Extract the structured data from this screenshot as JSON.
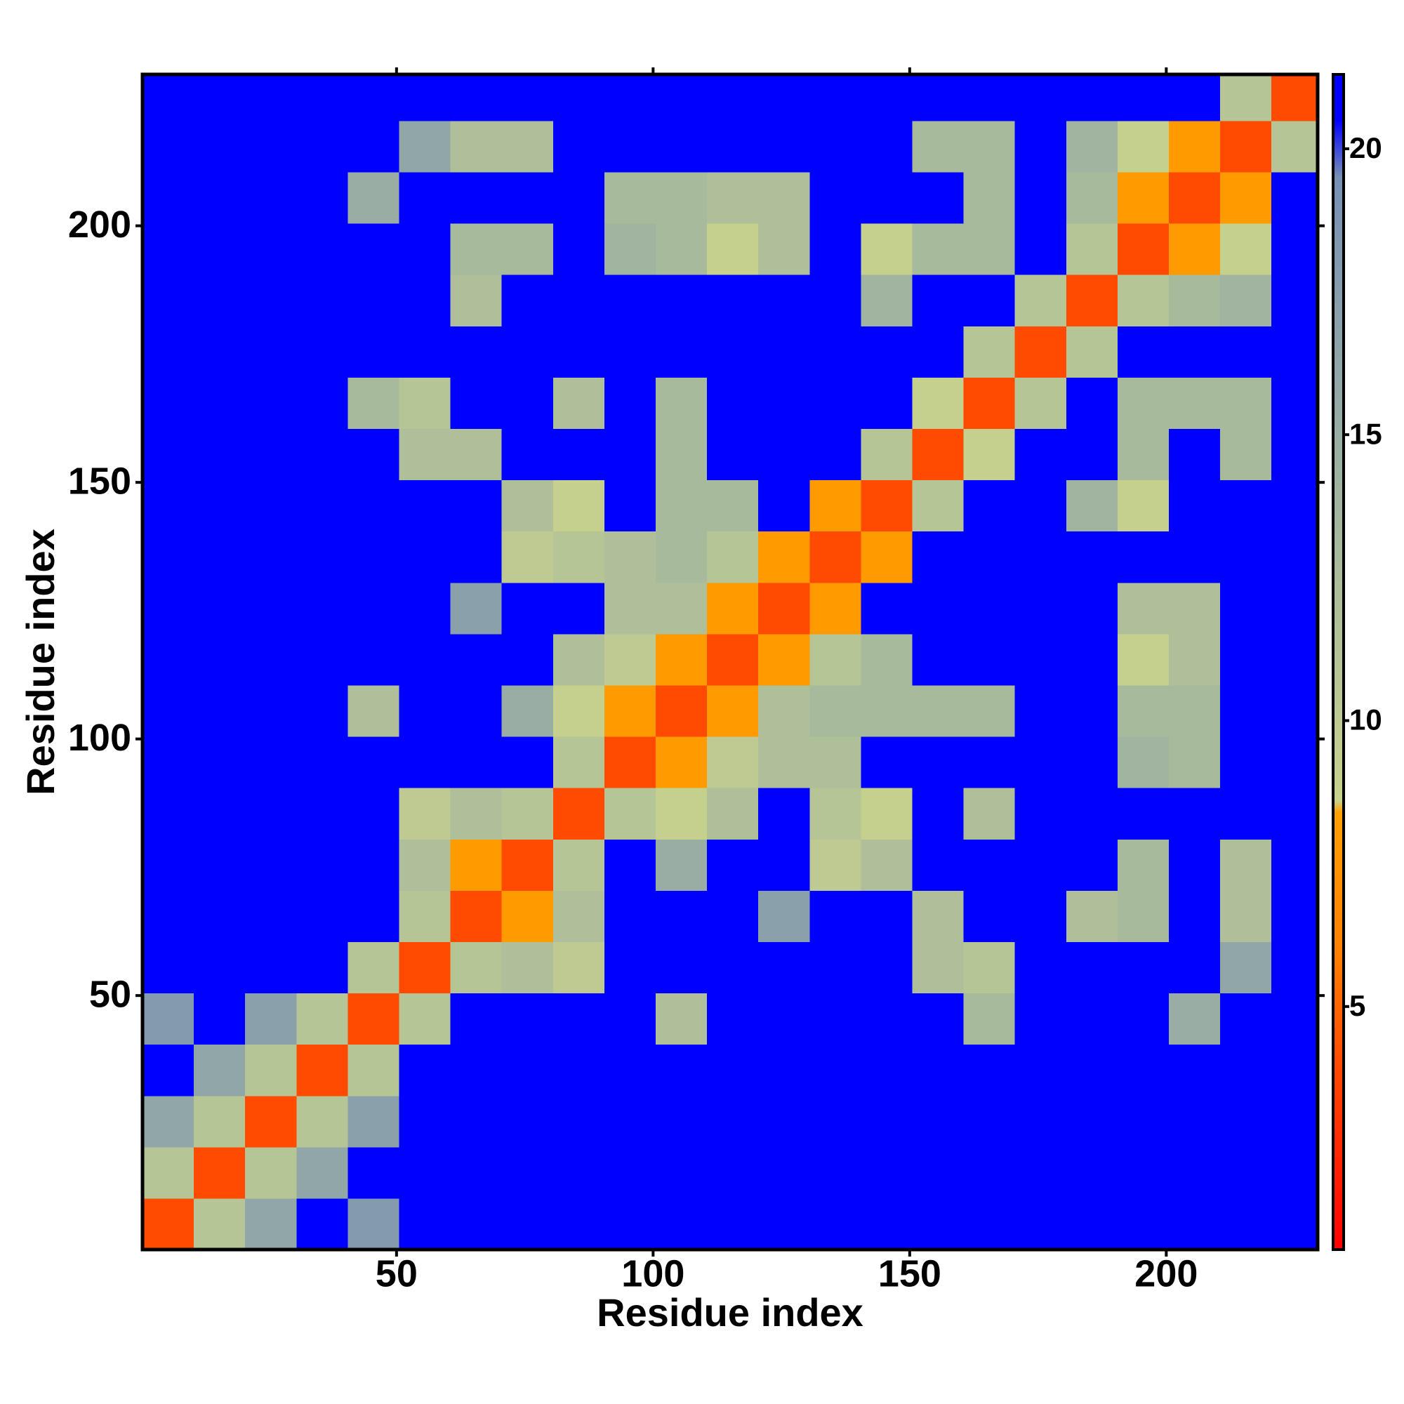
{
  "chart_data": {
    "type": "heatmap",
    "xlabel": "Residue index",
    "ylabel": "Residue index",
    "bins": [
      0.5,
      10.5,
      20.5,
      30.5,
      40.5,
      50.5,
      60.5,
      70.5,
      80.5,
      90.5,
      100.5,
      110.5,
      120.5,
      130.5,
      140.5,
      150.5,
      160.5,
      170.5,
      180.5,
      190.5,
      200.5,
      210.5,
      220.5,
      229.5
    ],
    "xlim": [
      0.5,
      229.5
    ],
    "ylim": [
      0.5,
      229.5
    ],
    "xticks": [
      50,
      100,
      150,
      200
    ],
    "yticks": [
      50,
      100,
      150,
      200
    ],
    "zlim": [
      0.75,
      21.3
    ],
    "zticks": [
      5,
      10,
      15,
      20
    ],
    "colorscale": [
      [
        0.75,
        "#ff0000"
      ],
      [
        4,
        "#ff4a00"
      ],
      [
        6,
        "#ff8000"
      ],
      [
        8.4,
        "#ffa000"
      ],
      [
        8.6,
        "#c8d28c"
      ],
      [
        14,
        "#a0b4a0"
      ],
      [
        19.5,
        "#7890b4"
      ],
      [
        20.5,
        "#0000ff"
      ]
    ],
    "z": [
      [
        4,
        11,
        16,
        21,
        18,
        21,
        21,
        21,
        21,
        21,
        21,
        21,
        21,
        21,
        21,
        21,
        21,
        21,
        21,
        21,
        21,
        21,
        21
      ],
      [
        11,
        4,
        11,
        16,
        21,
        21,
        21,
        21,
        21,
        21,
        21,
        21,
        21,
        21,
        21,
        21,
        21,
        21,
        21,
        21,
        21,
        21,
        21
      ],
      [
        16,
        11,
        4,
        11,
        17,
        21,
        21,
        21,
        21,
        21,
        21,
        21,
        21,
        21,
        21,
        21,
        21,
        21,
        21,
        21,
        21,
        21,
        21
      ],
      [
        21,
        16,
        11,
        4,
        11,
        21,
        21,
        21,
        21,
        21,
        21,
        21,
        21,
        21,
        21,
        21,
        21,
        21,
        21,
        21,
        21,
        21,
        21
      ],
      [
        18,
        21,
        17,
        11,
        4,
        11,
        21,
        21,
        21,
        21,
        12,
        21,
        21,
        21,
        21,
        21,
        13,
        21,
        21,
        21,
        15,
        21,
        21
      ],
      [
        21,
        21,
        21,
        21,
        11,
        4,
        11,
        12,
        10,
        21,
        21,
        21,
        21,
        21,
        21,
        12,
        11,
        21,
        21,
        21,
        21,
        16,
        21
      ],
      [
        21,
        21,
        21,
        21,
        21,
        11,
        4,
        8,
        12,
        21,
        21,
        21,
        17,
        21,
        21,
        12,
        21,
        21,
        12,
        13,
        21,
        12,
        21
      ],
      [
        21,
        21,
        21,
        21,
        21,
        12,
        8,
        4,
        11,
        21,
        15,
        21,
        21,
        10,
        12,
        21,
        21,
        21,
        21,
        13,
        21,
        12,
        21
      ],
      [
        21,
        21,
        21,
        21,
        21,
        10,
        12,
        11,
        4,
        11,
        9,
        12,
        21,
        11,
        9,
        21,
        12,
        21,
        21,
        21,
        21,
        21,
        21
      ],
      [
        21,
        21,
        21,
        21,
        21,
        21,
        21,
        21,
        11,
        4,
        8,
        10,
        12,
        12,
        21,
        21,
        21,
        21,
        21,
        14,
        13,
        21,
        21
      ],
      [
        21,
        21,
        21,
        21,
        12,
        21,
        21,
        15,
        9,
        8,
        4,
        8,
        12,
        13,
        13,
        13,
        13,
        21,
        21,
        13,
        13,
        21,
        21
      ],
      [
        21,
        21,
        21,
        21,
        21,
        21,
        21,
        21,
        12,
        10,
        8,
        4,
        8,
        11,
        13,
        21,
        21,
        21,
        21,
        9,
        12,
        21,
        21
      ],
      [
        21,
        21,
        21,
        21,
        21,
        21,
        17,
        21,
        21,
        12,
        12,
        8,
        4,
        8,
        21,
        21,
        21,
        21,
        21,
        12,
        12,
        21,
        21
      ],
      [
        21,
        21,
        21,
        21,
        21,
        21,
        21,
        10,
        11,
        12,
        13,
        11,
        8,
        4,
        8,
        21,
        21,
        21,
        21,
        21,
        21,
        21,
        21
      ],
      [
        21,
        21,
        21,
        21,
        21,
        21,
        21,
        12,
        9,
        21,
        13,
        13,
        21,
        8,
        4,
        11,
        21,
        21,
        14,
        9,
        21,
        21,
        21
      ],
      [
        21,
        21,
        21,
        21,
        21,
        12,
        12,
        21,
        21,
        21,
        13,
        21,
        21,
        21,
        11,
        4,
        9,
        21,
        21,
        13,
        21,
        13,
        21
      ],
      [
        21,
        21,
        21,
        21,
        13,
        11,
        21,
        21,
        12,
        21,
        13,
        21,
        21,
        21,
        21,
        9,
        4,
        11,
        21,
        13,
        13,
        13,
        21
      ],
      [
        21,
        21,
        21,
        21,
        21,
        21,
        21,
        21,
        21,
        21,
        21,
        21,
        21,
        21,
        21,
        21,
        11,
        4,
        11,
        21,
        21,
        21,
        21
      ],
      [
        21,
        21,
        21,
        21,
        21,
        21,
        12,
        21,
        21,
        21,
        21,
        21,
        21,
        21,
        14,
        21,
        21,
        11,
        4,
        11,
        13,
        14,
        21
      ],
      [
        21,
        21,
        21,
        21,
        21,
        21,
        13,
        13,
        21,
        14,
        13,
        9,
        12,
        21,
        9,
        13,
        13,
        21,
        11,
        4,
        8,
        9,
        21
      ],
      [
        21,
        21,
        21,
        21,
        15,
        21,
        21,
        21,
        21,
        13,
        13,
        12,
        12,
        21,
        21,
        21,
        13,
        21,
        13,
        8,
        4,
        8,
        21
      ],
      [
        21,
        21,
        21,
        21,
        21,
        16,
        12,
        12,
        21,
        21,
        21,
        21,
        21,
        21,
        21,
        13,
        13,
        21,
        14,
        9,
        8,
        4,
        11
      ],
      [
        21,
        21,
        21,
        21,
        21,
        21,
        21,
        21,
        21,
        21,
        21,
        21,
        21,
        21,
        21,
        21,
        21,
        21,
        21,
        21,
        21,
        11,
        4
      ]
    ]
  }
}
